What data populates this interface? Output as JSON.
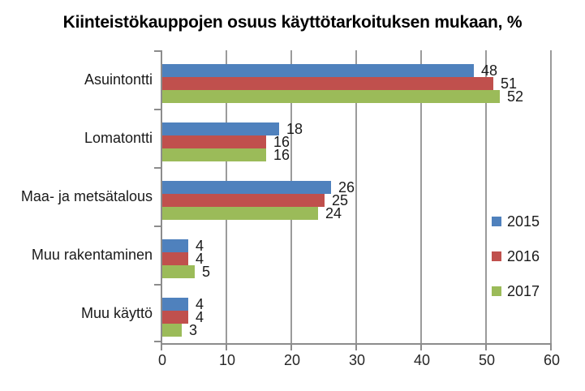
{
  "title": "Kiinteistökauppojen osuus käyttötarkoituksen mukaan, %",
  "colors": {
    "series_2015": "#4F81BD",
    "series_2016": "#C0504D",
    "series_2017": "#9BBB59",
    "axis": "#8C8C8C",
    "gridline": "#9B9B9B",
    "text": "#1A1A1A"
  },
  "chart_data": {
    "type": "bar",
    "orientation": "horizontal",
    "title": "Kiinteistökauppojen osuus käyttötarkoituksen mukaan, %",
    "categories": [
      "Asuintontti",
      "Lomatontti",
      "Maa- ja metsätalous",
      "Muu rakentaminen",
      "Muu käyttö"
    ],
    "series": [
      {
        "name": "2015",
        "color": "#4F81BD",
        "values": [
          48,
          18,
          26,
          4,
          4
        ]
      },
      {
        "name": "2016",
        "color": "#C0504D",
        "values": [
          51,
          16,
          25,
          4,
          4
        ]
      },
      {
        "name": "2017",
        "color": "#9BBB59",
        "values": [
          52,
          16,
          24,
          5,
          3
        ]
      }
    ],
    "x_ticks": [
      "0",
      "10",
      "20",
      "30",
      "40",
      "50",
      "60"
    ],
    "xlim": [
      0,
      60
    ],
    "xlabel": "",
    "ylabel": "",
    "grid": "vertical",
    "legend_position": "right",
    "data_labels": true
  }
}
